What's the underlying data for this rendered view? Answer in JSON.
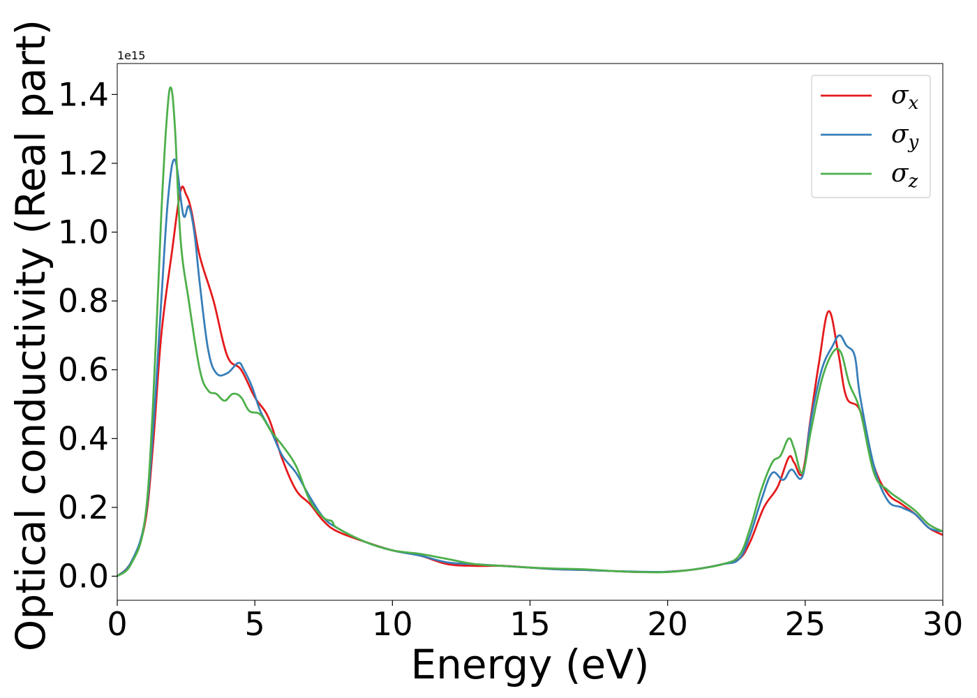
{
  "chart_data": {
    "type": "line",
    "xlabel": "Energy (eV)",
    "ylabel": "Optical conductivity (Real part)",
    "y_offset_text": "1e15",
    "xlim": [
      0,
      30
    ],
    "ylim": [
      -0.07,
      1.49
    ],
    "xticks": [
      0,
      5,
      10,
      15,
      20,
      25,
      30
    ],
    "xtick_labels": [
      "0",
      "5",
      "10",
      "15",
      "20",
      "25",
      "30"
    ],
    "yticks": [
      0.0,
      0.2,
      0.4,
      0.6,
      0.8,
      1.0,
      1.2,
      1.4
    ],
    "ytick_labels": [
      "0.0",
      "0.2",
      "0.4",
      "0.6",
      "0.8",
      "1.0",
      "1.2",
      "1.4"
    ],
    "grid": false,
    "legend_position": "top-right",
    "series": [
      {
        "name": "σx",
        "legend_base": "σ",
        "legend_sub": "x",
        "color": "#e41a1c",
        "x": [
          0,
          0.5,
          1.0,
          1.3,
          1.6,
          2.0,
          2.3,
          2.5,
          2.7,
          3.0,
          3.5,
          4.0,
          4.5,
          5.0,
          5.5,
          6.0,
          6.5,
          7.0,
          7.5,
          8.0,
          9.0,
          10.0,
          11.0,
          12.0,
          13.0,
          14.0,
          15.0,
          16.0,
          17.0,
          18.0,
          19.0,
          20.0,
          21.0,
          22.0,
          22.6,
          23.0,
          23.5,
          24.0,
          24.4,
          24.6,
          24.9,
          25.2,
          25.5,
          25.85,
          26.2,
          26.5,
          27.0,
          27.5,
          28.0,
          28.5,
          29.0,
          29.5,
          30.0
        ],
        "y": [
          0.0,
          0.04,
          0.15,
          0.38,
          0.7,
          0.95,
          1.12,
          1.11,
          1.06,
          0.93,
          0.8,
          0.64,
          0.6,
          0.52,
          0.46,
          0.34,
          0.25,
          0.21,
          0.16,
          0.13,
          0.1,
          0.075,
          0.06,
          0.035,
          0.03,
          0.03,
          0.025,
          0.02,
          0.018,
          0.015,
          0.012,
          0.013,
          0.02,
          0.035,
          0.05,
          0.1,
          0.2,
          0.26,
          0.345,
          0.33,
          0.3,
          0.46,
          0.62,
          0.77,
          0.65,
          0.52,
          0.48,
          0.32,
          0.24,
          0.21,
          0.18,
          0.14,
          0.12
        ]
      },
      {
        "name": "σy",
        "legend_base": "σ",
        "legend_sub": "y",
        "color": "#377eb8",
        "x": [
          0,
          0.5,
          1.0,
          1.3,
          1.6,
          1.85,
          2.1,
          2.4,
          2.6,
          2.8,
          3.0,
          3.3,
          3.6,
          4.0,
          4.4,
          4.6,
          4.9,
          5.2,
          5.6,
          6.0,
          6.5,
          7.0,
          7.5,
          8.0,
          9.0,
          10.0,
          11.0,
          12.0,
          13.0,
          14.0,
          15.0,
          16.0,
          17.0,
          18.0,
          19.0,
          20.0,
          21.0,
          22.0,
          22.6,
          23.0,
          23.4,
          23.8,
          24.2,
          24.5,
          24.9,
          25.2,
          25.6,
          26.0,
          26.25,
          26.5,
          26.8,
          27.0,
          27.5,
          28.0,
          28.5,
          29.0,
          29.5,
          30.0
        ],
        "y": [
          0.0,
          0.04,
          0.16,
          0.42,
          0.8,
          1.1,
          1.21,
          1.05,
          1.075,
          1.0,
          0.85,
          0.66,
          0.59,
          0.59,
          0.62,
          0.6,
          0.55,
          0.48,
          0.42,
          0.35,
          0.3,
          0.23,
          0.17,
          0.14,
          0.1,
          0.075,
          0.06,
          0.04,
          0.035,
          0.03,
          0.025,
          0.02,
          0.018,
          0.015,
          0.013,
          0.013,
          0.02,
          0.035,
          0.05,
          0.12,
          0.22,
          0.3,
          0.28,
          0.31,
          0.29,
          0.45,
          0.6,
          0.67,
          0.7,
          0.67,
          0.64,
          0.52,
          0.32,
          0.22,
          0.2,
          0.18,
          0.14,
          0.13
        ]
      },
      {
        "name": "σz",
        "legend_base": "σ",
        "legend_sub": "z",
        "color": "#4daf4a",
        "x": [
          0,
          0.5,
          1.0,
          1.3,
          1.6,
          1.8,
          1.95,
          2.1,
          2.3,
          2.6,
          3.0,
          3.3,
          3.6,
          3.9,
          4.2,
          4.5,
          4.8,
          5.2,
          5.6,
          6.0,
          6.5,
          7.0,
          7.5,
          7.8,
          8.0,
          9.0,
          10.0,
          11.0,
          12.0,
          13.0,
          14.0,
          15.0,
          16.0,
          17.0,
          18.0,
          19.0,
          20.0,
          21.0,
          22.0,
          22.6,
          23.0,
          23.4,
          23.8,
          24.1,
          24.4,
          24.6,
          24.9,
          25.2,
          25.6,
          26.0,
          26.3,
          26.6,
          27.0,
          27.5,
          28.0,
          28.5,
          29.0,
          29.5,
          30.0
        ],
        "y": [
          0.0,
          0.035,
          0.16,
          0.5,
          1.05,
          1.33,
          1.42,
          1.3,
          0.98,
          0.8,
          0.6,
          0.54,
          0.53,
          0.51,
          0.53,
          0.52,
          0.48,
          0.47,
          0.42,
          0.38,
          0.32,
          0.22,
          0.17,
          0.16,
          0.14,
          0.1,
          0.075,
          0.065,
          0.05,
          0.035,
          0.03,
          0.025,
          0.022,
          0.02,
          0.015,
          0.012,
          0.012,
          0.02,
          0.035,
          0.06,
          0.14,
          0.25,
          0.33,
          0.35,
          0.4,
          0.37,
          0.3,
          0.42,
          0.57,
          0.65,
          0.65,
          0.56,
          0.48,
          0.3,
          0.25,
          0.22,
          0.19,
          0.15,
          0.13
        ]
      }
    ]
  }
}
